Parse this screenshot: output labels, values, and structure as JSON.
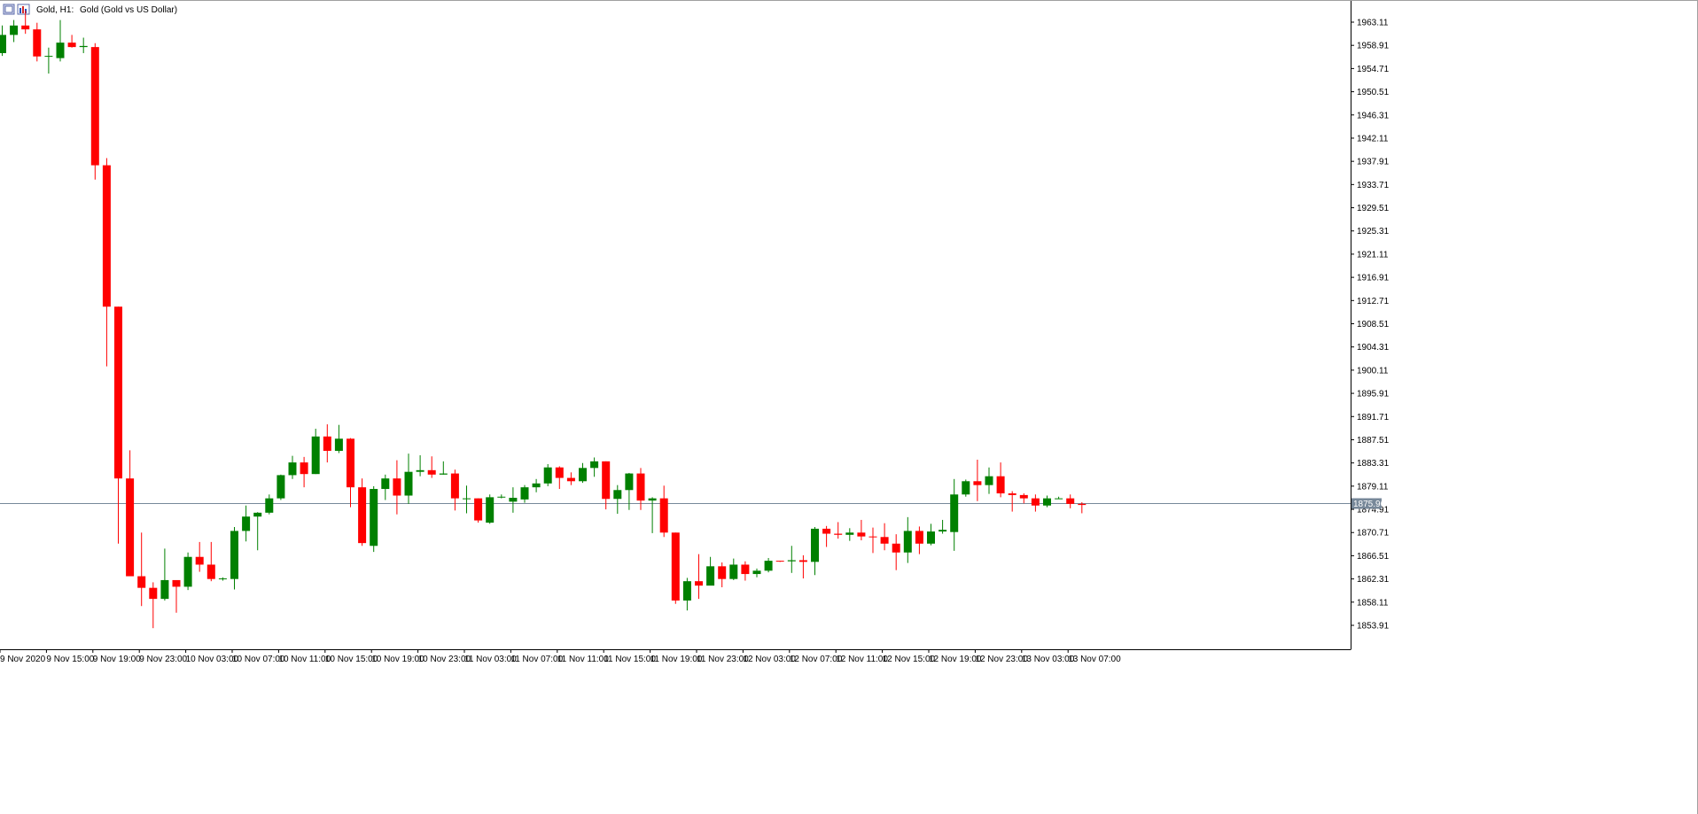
{
  "window": {
    "symbol_label": "Gold, H1:",
    "description": "Gold (Gold vs US Dollar)",
    "icons": [
      "window-restore-icon",
      "chart-window-icon"
    ]
  },
  "colors": {
    "bull": "#008000",
    "bear": "#ff0000",
    "frame": "#000000",
    "price_line": "#778899",
    "background": "#ffffff"
  },
  "current_price": {
    "value": 1875.96,
    "label": "1875.96"
  },
  "chart_data": {
    "type": "candlestick",
    "title": "Gold, H1:  Gold (Gold vs US Dollar)",
    "timeframe": "H1",
    "ylim": [
      1851.8,
      1965.2
    ],
    "y_ticks": [
      "1963.11",
      "1958.91",
      "1954.71",
      "1950.51",
      "1946.31",
      "1942.11",
      "1937.91",
      "1933.71",
      "1929.51",
      "1925.31",
      "1921.11",
      "1916.91",
      "1912.71",
      "1908.51",
      "1904.31",
      "1900.11",
      "1895.91",
      "1891.71",
      "1887.51",
      "1883.31",
      "1879.11",
      "1874.91",
      "1870.71",
      "1866.51",
      "1862.31",
      "1858.11",
      "1853.91"
    ],
    "x_labels": [
      {
        "index": 0,
        "label": "9 Nov 2020"
      },
      {
        "index": 4,
        "label": "9 Nov 15:00"
      },
      {
        "index": 8,
        "label": "9 Nov 19:00"
      },
      {
        "index": 12,
        "label": "9 Nov 23:00"
      },
      {
        "index": 16,
        "label": "10 Nov 03:00"
      },
      {
        "index": 20,
        "label": "10 Nov 07:00"
      },
      {
        "index": 24,
        "label": "10 Nov 11:00"
      },
      {
        "index": 28,
        "label": "10 Nov 15:00"
      },
      {
        "index": 32,
        "label": "10 Nov 19:00"
      },
      {
        "index": 36,
        "label": "10 Nov 23:00"
      },
      {
        "index": 40,
        "label": "11 Nov 03:00"
      },
      {
        "index": 44,
        "label": "11 Nov 07:00"
      },
      {
        "index": 48,
        "label": "11 Nov 11:00"
      },
      {
        "index": 52,
        "label": "11 Nov 15:00"
      },
      {
        "index": 56,
        "label": "11 Nov 19:00"
      },
      {
        "index": 60,
        "label": "11 Nov 23:00"
      },
      {
        "index": 64,
        "label": "12 Nov 03:00"
      },
      {
        "index": 68,
        "label": "12 Nov 07:00"
      },
      {
        "index": 72,
        "label": "12 Nov 11:00"
      },
      {
        "index": 76,
        "label": "12 Nov 15:00"
      },
      {
        "index": 80,
        "label": "12 Nov 19:00"
      },
      {
        "index": 84,
        "label": "12 Nov 23:00"
      },
      {
        "index": 88,
        "label": "13 Nov 03:00"
      },
      {
        "index": 92,
        "label": "13 Nov 07:00"
      }
    ],
    "candles": [
      {
        "o": 1957.5,
        "h": 1962.5,
        "l": 1957.0,
        "c": 1960.8
      },
      {
        "o": 1960.8,
        "h": 1963.5,
        "l": 1959.5,
        "c": 1962.5
      },
      {
        "o": 1962.5,
        "h": 1965.2,
        "l": 1961.0,
        "c": 1961.8
      },
      {
        "o": 1961.8,
        "h": 1963.0,
        "l": 1956.0,
        "c": 1956.9
      },
      {
        "o": 1956.9,
        "h": 1958.5,
        "l": 1953.8,
        "c": 1957.0
      },
      {
        "o": 1956.6,
        "h": 1963.5,
        "l": 1956.0,
        "c": 1959.4
      },
      {
        "o": 1959.4,
        "h": 1960.8,
        "l": 1958.5,
        "c": 1958.6
      },
      {
        "o": 1958.6,
        "h": 1960.3,
        "l": 1957.5,
        "c": 1958.8
      },
      {
        "o": 1958.6,
        "h": 1959.3,
        "l": 1934.6,
        "c": 1937.2
      },
      {
        "o": 1937.2,
        "h": 1938.5,
        "l": 1900.8,
        "c": 1911.6
      },
      {
        "o": 1911.6,
        "h": 1911.6,
        "l": 1868.7,
        "c": 1880.5
      },
      {
        "o": 1880.5,
        "h": 1885.6,
        "l": 1862.8,
        "c": 1862.8
      },
      {
        "o": 1862.8,
        "h": 1870.7,
        "l": 1857.4,
        "c": 1860.7
      },
      {
        "o": 1860.7,
        "h": 1861.7,
        "l": 1853.4,
        "c": 1858.7
      },
      {
        "o": 1858.7,
        "h": 1867.8,
        "l": 1858.4,
        "c": 1862.1
      },
      {
        "o": 1862.1,
        "h": 1861.9,
        "l": 1856.2,
        "c": 1860.9
      },
      {
        "o": 1860.9,
        "h": 1867.1,
        "l": 1860.3,
        "c": 1866.3
      },
      {
        "o": 1866.3,
        "h": 1869.0,
        "l": 1863.6,
        "c": 1864.9
      },
      {
        "o": 1864.9,
        "h": 1869.0,
        "l": 1861.9,
        "c": 1862.3
      },
      {
        "o": 1862.3,
        "h": 1862.6,
        "l": 1862.0,
        "c": 1862.4
      },
      {
        "o": 1862.3,
        "h": 1871.7,
        "l": 1860.4,
        "c": 1871.0
      },
      {
        "o": 1871.0,
        "h": 1875.6,
        "l": 1869.1,
        "c": 1873.6
      },
      {
        "o": 1873.6,
        "h": 1874.4,
        "l": 1867.5,
        "c": 1874.3
      },
      {
        "o": 1874.3,
        "h": 1877.6,
        "l": 1874.0,
        "c": 1876.9
      },
      {
        "o": 1876.9,
        "h": 1881.2,
        "l": 1876.6,
        "c": 1881.1
      },
      {
        "o": 1881.1,
        "h": 1884.6,
        "l": 1880.4,
        "c": 1883.4
      },
      {
        "o": 1883.4,
        "h": 1884.4,
        "l": 1878.9,
        "c": 1881.3
      },
      {
        "o": 1881.3,
        "h": 1889.5,
        "l": 1881.3,
        "c": 1888.1
      },
      {
        "o": 1888.1,
        "h": 1890.3,
        "l": 1883.4,
        "c": 1885.5
      },
      {
        "o": 1885.5,
        "h": 1890.2,
        "l": 1885.1,
        "c": 1887.7
      },
      {
        "o": 1887.7,
        "h": 1887.8,
        "l": 1875.3,
        "c": 1878.9
      },
      {
        "o": 1878.9,
        "h": 1880.5,
        "l": 1868.3,
        "c": 1868.8
      },
      {
        "o": 1868.3,
        "h": 1879.1,
        "l": 1867.2,
        "c": 1878.6
      },
      {
        "o": 1878.6,
        "h": 1881.2,
        "l": 1876.6,
        "c": 1880.5
      },
      {
        "o": 1880.5,
        "h": 1883.8,
        "l": 1874.0,
        "c": 1877.4
      },
      {
        "o": 1877.4,
        "h": 1885.0,
        "l": 1875.9,
        "c": 1881.7
      },
      {
        "o": 1881.7,
        "h": 1884.7,
        "l": 1880.9,
        "c": 1882.0
      },
      {
        "o": 1882.0,
        "h": 1884.5,
        "l": 1880.6,
        "c": 1881.2
      },
      {
        "o": 1881.2,
        "h": 1883.6,
        "l": 1881.2,
        "c": 1881.4
      },
      {
        "o": 1881.4,
        "h": 1882.1,
        "l": 1874.7,
        "c": 1876.9
      },
      {
        "o": 1876.9,
        "h": 1879.2,
        "l": 1874.2,
        "c": 1876.9
      },
      {
        "o": 1876.9,
        "h": 1876.9,
        "l": 1872.5,
        "c": 1872.9
      },
      {
        "o": 1872.5,
        "h": 1877.6,
        "l": 1872.3,
        "c": 1877.1
      },
      {
        "o": 1877.1,
        "h": 1877.6,
        "l": 1876.9,
        "c": 1877.2
      },
      {
        "o": 1876.3,
        "h": 1878.9,
        "l": 1874.3,
        "c": 1877.0
      },
      {
        "o": 1876.7,
        "h": 1879.3,
        "l": 1876.1,
        "c": 1878.9
      },
      {
        "o": 1878.9,
        "h": 1880.4,
        "l": 1878.0,
        "c": 1879.6
      },
      {
        "o": 1879.6,
        "h": 1883.1,
        "l": 1879.1,
        "c": 1882.5
      },
      {
        "o": 1882.5,
        "h": 1882.7,
        "l": 1878.6,
        "c": 1880.6
      },
      {
        "o": 1880.6,
        "h": 1881.6,
        "l": 1879.3,
        "c": 1880.0
      },
      {
        "o": 1880.0,
        "h": 1883.3,
        "l": 1879.7,
        "c": 1882.4
      },
      {
        "o": 1882.4,
        "h": 1884.3,
        "l": 1880.8,
        "c": 1883.6
      },
      {
        "o": 1883.6,
        "h": 1883.6,
        "l": 1874.9,
        "c": 1876.8
      },
      {
        "o": 1876.8,
        "h": 1879.3,
        "l": 1874.1,
        "c": 1878.4
      },
      {
        "o": 1878.4,
        "h": 1881.5,
        "l": 1874.8,
        "c": 1881.4
      },
      {
        "o": 1881.4,
        "h": 1882.4,
        "l": 1874.8,
        "c": 1876.5
      },
      {
        "o": 1876.5,
        "h": 1877.1,
        "l": 1870.6,
        "c": 1876.9
      },
      {
        "o": 1876.9,
        "h": 1879.2,
        "l": 1869.9,
        "c": 1870.7
      },
      {
        "o": 1870.7,
        "h": 1870.7,
        "l": 1857.8,
        "c": 1858.4
      },
      {
        "o": 1858.4,
        "h": 1862.5,
        "l": 1856.6,
        "c": 1861.9
      },
      {
        "o": 1861.9,
        "h": 1866.8,
        "l": 1858.7,
        "c": 1861.1
      },
      {
        "o": 1861.1,
        "h": 1866.3,
        "l": 1861.3,
        "c": 1864.6
      },
      {
        "o": 1864.6,
        "h": 1865.3,
        "l": 1860.8,
        "c": 1862.3
      },
      {
        "o": 1862.3,
        "h": 1866.0,
        "l": 1862.1,
        "c": 1864.9
      },
      {
        "o": 1864.9,
        "h": 1865.5,
        "l": 1862.0,
        "c": 1863.2
      },
      {
        "o": 1863.2,
        "h": 1864.2,
        "l": 1862.6,
        "c": 1863.8
      },
      {
        "o": 1863.8,
        "h": 1866.1,
        "l": 1863.5,
        "c": 1865.6
      },
      {
        "o": 1865.6,
        "h": 1865.6,
        "l": 1865.4,
        "c": 1865.5
      },
      {
        "o": 1865.5,
        "h": 1868.3,
        "l": 1863.4,
        "c": 1865.7
      },
      {
        "o": 1865.7,
        "h": 1866.6,
        "l": 1862.4,
        "c": 1865.4
      },
      {
        "o": 1865.4,
        "h": 1871.7,
        "l": 1863.0,
        "c": 1871.4
      },
      {
        "o": 1871.4,
        "h": 1871.9,
        "l": 1868.1,
        "c": 1870.5
      },
      {
        "o": 1870.5,
        "h": 1872.6,
        "l": 1869.6,
        "c": 1870.3
      },
      {
        "o": 1870.3,
        "h": 1871.5,
        "l": 1869.2,
        "c": 1870.7
      },
      {
        "o": 1870.7,
        "h": 1873.0,
        "l": 1869.3,
        "c": 1870.0
      },
      {
        "o": 1870.0,
        "h": 1871.6,
        "l": 1867.0,
        "c": 1869.9
      },
      {
        "o": 1869.9,
        "h": 1872.4,
        "l": 1867.5,
        "c": 1868.7
      },
      {
        "o": 1868.7,
        "h": 1870.4,
        "l": 1863.9,
        "c": 1867.1
      },
      {
        "o": 1867.1,
        "h": 1873.5,
        "l": 1865.2,
        "c": 1871.0
      },
      {
        "o": 1871.0,
        "h": 1871.8,
        "l": 1866.8,
        "c": 1868.7
      },
      {
        "o": 1868.7,
        "h": 1872.3,
        "l": 1868.4,
        "c": 1870.9
      },
      {
        "o": 1870.9,
        "h": 1873.0,
        "l": 1870.5,
        "c": 1871.2
      },
      {
        "o": 1870.8,
        "h": 1880.4,
        "l": 1867.4,
        "c": 1877.6
      },
      {
        "o": 1877.6,
        "h": 1880.3,
        "l": 1877.2,
        "c": 1880.0
      },
      {
        "o": 1880.0,
        "h": 1883.9,
        "l": 1876.4,
        "c": 1879.3
      },
      {
        "o": 1879.3,
        "h": 1882.5,
        "l": 1877.7,
        "c": 1880.9
      },
      {
        "o": 1880.9,
        "h": 1883.4,
        "l": 1877.1,
        "c": 1877.8
      },
      {
        "o": 1877.8,
        "h": 1878.2,
        "l": 1874.5,
        "c": 1877.5
      },
      {
        "o": 1877.5,
        "h": 1877.8,
        "l": 1876.0,
        "c": 1876.9
      },
      {
        "o": 1876.9,
        "h": 1877.6,
        "l": 1874.5,
        "c": 1875.6
      },
      {
        "o": 1875.6,
        "h": 1877.4,
        "l": 1875.3,
        "c": 1876.9
      },
      {
        "o": 1876.9,
        "h": 1877.2,
        "l": 1876.8,
        "c": 1876.9
      },
      {
        "o": 1876.9,
        "h": 1877.6,
        "l": 1875.1,
        "c": 1875.9
      },
      {
        "o": 1875.9,
        "h": 1876.2,
        "l": 1874.2,
        "c": 1875.7
      }
    ]
  }
}
